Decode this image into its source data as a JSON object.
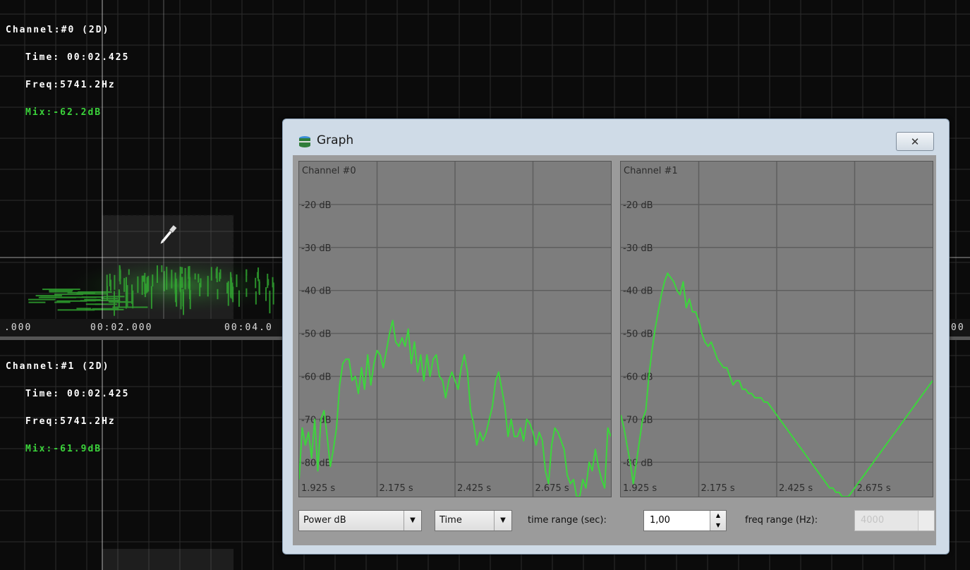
{
  "spectrogram": {
    "channel0": {
      "channel": "Channel:#0 (2D)",
      "time": "Time: 00:02.425",
      "freq": "Freq:5741.2Hz",
      "mix": "Mix:-62.2dB"
    },
    "channel1": {
      "channel": "Channel:#1 (2D)",
      "time": "Time: 00:02.425",
      "freq": "Freq:5741.2Hz",
      "mix": "Mix:-61.9dB"
    },
    "timeline": {
      "t0": ".000",
      "t1": "00:02.000",
      "t2": "00:04.0",
      "t3": "00"
    },
    "colors": {
      "grid": "#3a3a3a",
      "signal": "#3bd43b"
    }
  },
  "graph_window": {
    "title": "Graph",
    "icon": "database-icon",
    "close_label": "✕"
  },
  "chart_data": [
    {
      "type": "line",
      "title": "Channel #0",
      "x_ticks": [
        "1.925 s",
        "2.175 s",
        "2.425 s",
        "2.675 s"
      ],
      "y_ticks": [
        "-20 dB",
        "-30 dB",
        "-40 dB",
        "-50 dB",
        "-60 dB",
        "-70 dB",
        "-80 dB"
      ],
      "xlim": [
        1.925,
        2.925
      ],
      "ylim": [
        -88,
        -10
      ],
      "series": [
        {
          "color": "#3cd63c",
          "x": [
            1.925,
            1.935,
            1.945,
            1.955,
            1.965,
            1.975,
            1.985,
            1.995,
            2.005,
            2.015,
            2.025,
            2.035,
            2.045,
            2.055,
            2.065,
            2.075,
            2.085,
            2.095,
            2.105,
            2.115,
            2.125,
            2.135,
            2.145,
            2.155,
            2.165,
            2.175,
            2.185,
            2.195,
            2.205,
            2.215,
            2.225,
            2.235,
            2.245,
            2.255,
            2.265,
            2.275,
            2.285,
            2.295,
            2.305,
            2.315,
            2.325,
            2.335,
            2.345,
            2.355,
            2.365,
            2.375,
            2.385,
            2.395,
            2.405,
            2.415,
            2.425,
            2.435,
            2.445,
            2.455,
            2.465,
            2.475,
            2.485,
            2.495,
            2.505,
            2.515,
            2.525,
            2.535,
            2.545,
            2.555,
            2.565,
            2.575,
            2.585,
            2.595,
            2.605,
            2.615,
            2.625,
            2.635,
            2.645,
            2.655,
            2.665,
            2.675,
            2.685,
            2.695,
            2.705,
            2.715,
            2.725,
            2.735,
            2.745,
            2.755,
            2.765,
            2.775,
            2.785,
            2.795,
            2.805,
            2.815,
            2.825,
            2.835,
            2.845,
            2.855,
            2.865,
            2.875,
            2.885,
            2.895,
            2.905,
            2.915,
            2.925
          ],
          "y": [
            -84,
            -72,
            -76,
            -73,
            -79,
            -70,
            -82,
            -70,
            -68,
            -74,
            -81,
            -77,
            -72,
            -62,
            -57,
            -56,
            -56,
            -61,
            -60,
            -64,
            -58,
            -63,
            -55,
            -62,
            -57,
            -54,
            -55,
            -58,
            -54,
            -50,
            -47,
            -52,
            -53,
            -51,
            -53,
            -49,
            -57,
            -52,
            -59,
            -55,
            -61,
            -55,
            -60,
            -56,
            -55,
            -60,
            -61,
            -65,
            -61,
            -59,
            -61,
            -63,
            -58,
            -55,
            -59,
            -68,
            -71,
            -76,
            -73,
            -75,
            -73,
            -70,
            -67,
            -61,
            -59,
            -63,
            -67,
            -74,
            -70,
            -74,
            -74,
            -72,
            -75,
            -70,
            -71,
            -73,
            -76,
            -73,
            -75,
            -82,
            -85,
            -76,
            -72,
            -73,
            -75,
            -77,
            -83,
            -85,
            -84,
            -88,
            -88,
            -84,
            -86,
            -80,
            -82,
            -77,
            -81,
            -84,
            -86,
            -72,
            -74
          ]
        }
      ]
    },
    {
      "type": "line",
      "title": "Channel #1",
      "x_ticks": [
        "1.925 s",
        "2.175 s",
        "2.425 s",
        "2.675 s"
      ],
      "y_ticks": [
        "-20 dB",
        "-30 dB",
        "-40 dB",
        "-50 dB",
        "-60 dB",
        "-70 dB",
        "-80 dB"
      ],
      "xlim": [
        1.925,
        2.925
      ],
      "ylim": [
        -88,
        -10
      ],
      "series": [
        {
          "color": "#3cd63c",
          "x": [
            1.925,
            1.935,
            1.945,
            1.955,
            1.965,
            1.975,
            1.985,
            1.995,
            2.005,
            2.015,
            2.025,
            2.035,
            2.045,
            2.055,
            2.065,
            2.075,
            2.085,
            2.095,
            2.105,
            2.115,
            2.125,
            2.135,
            2.145,
            2.155,
            2.165,
            2.175,
            2.185,
            2.195,
            2.205,
            2.215,
            2.225,
            2.235,
            2.245,
            2.255,
            2.265,
            2.275,
            2.285,
            2.295,
            2.305,
            2.315,
            2.325,
            2.335,
            2.345,
            2.355,
            2.365,
            2.375,
            2.385,
            2.395,
            2.405,
            2.415,
            2.425,
            2.435,
            2.445,
            2.455,
            2.465,
            2.475,
            2.485,
            2.495,
            2.505,
            2.515,
            2.525,
            2.535,
            2.545,
            2.555,
            2.565,
            2.575,
            2.585,
            2.595,
            2.605,
            2.615,
            2.625,
            2.635,
            2.645,
            2.655,
            2.665,
            2.675,
            2.685,
            2.695,
            2.705,
            2.715,
            2.725,
            2.735,
            2.745,
            2.755,
            2.765,
            2.775,
            2.785,
            2.795,
            2.805,
            2.815,
            2.825,
            2.835,
            2.845,
            2.855,
            2.865,
            2.875,
            2.885,
            2.895,
            2.905,
            2.915,
            2.925
          ],
          "y": [
            -69,
            -72,
            -76,
            -80,
            -85,
            -80,
            -75,
            -70,
            -68,
            -60,
            -54,
            -49,
            -45,
            -41,
            -38,
            -36,
            -37,
            -38,
            -40,
            -41,
            -38,
            -44,
            -42,
            -45,
            -45,
            -47,
            -50,
            -52,
            -53,
            -52,
            -54,
            -56,
            -57,
            -58,
            -58,
            -60,
            -62,
            -61,
            -61,
            -63,
            -63,
            -64,
            -64,
            -65,
            -65,
            -65,
            -66,
            -66,
            -67,
            -68,
            -69,
            -70,
            -71,
            -72,
            -73,
            -74,
            -75,
            -76,
            -77,
            -78,
            -79,
            -80,
            -81,
            -82,
            -83,
            -84,
            -85,
            -86,
            -86,
            -87,
            -87,
            -88,
            -88,
            -88,
            -87,
            -86,
            -85,
            -84,
            -83,
            -82,
            -81,
            -80,
            -79,
            -78,
            -77,
            -76,
            -75,
            -74,
            -73,
            -72,
            -71,
            -70,
            -69,
            -68,
            -67,
            -66,
            -65,
            -64,
            -63,
            -62,
            -61
          ]
        }
      ]
    }
  ],
  "controls": {
    "mode": {
      "value": "Power dB"
    },
    "axis": {
      "value": "Time"
    },
    "time_range_label": "time range (sec):",
    "time_range_value": "1,00",
    "freq_range_label": "freq range (Hz):",
    "freq_range_value": "4000"
  }
}
